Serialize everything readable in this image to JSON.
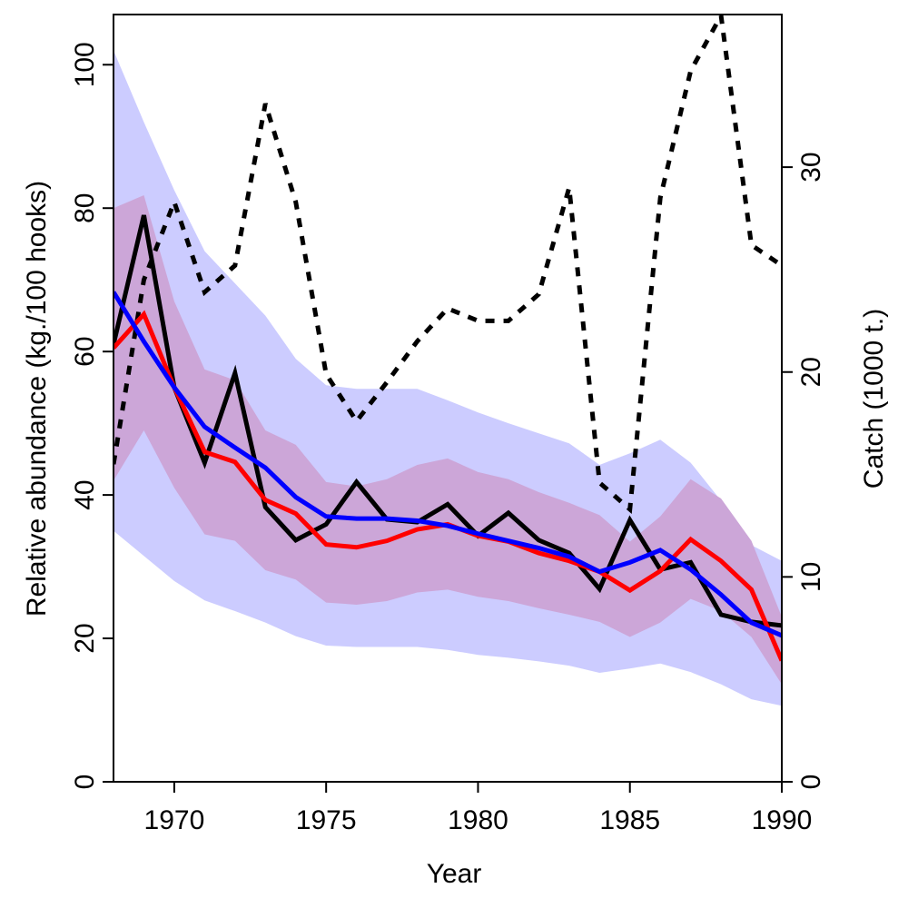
{
  "chart_data": {
    "type": "line",
    "title": "",
    "xlabel": "Year",
    "ylabel": "Relative abundance (kg./100 hooks)",
    "y2label": "Catch (1000 t.)",
    "xlim": [
      1968,
      1990
    ],
    "ylim": [
      0,
      107
    ],
    "y2lim": [
      0,
      37.45
    ],
    "xticks": [
      "1970",
      "1975",
      "1980",
      "1985",
      "1990"
    ],
    "yticks": [
      "0",
      "20",
      "40",
      "60",
      "80",
      "100"
    ],
    "y2ticks": [
      "0",
      "10",
      "20",
      "30"
    ],
    "grid": false,
    "legend": "none",
    "colors": {
      "outer_band": "#ccccff",
      "inner_band": "#cca6d8",
      "observed": "#000000",
      "fit_red": "#ff0000",
      "fit_blue": "#0000ff",
      "catch": "#000000"
    },
    "x": [
      1968,
      1969,
      1970,
      1971,
      1972,
      1973,
      1974,
      1975,
      1976,
      1977,
      1978,
      1979,
      1980,
      1981,
      1982,
      1983,
      1984,
      1985,
      1986,
      1987,
      1988,
      1989,
      1990
    ],
    "bands": [
      {
        "lower": [
          35,
          31.5,
          28,
          25.3,
          23.8,
          22.2,
          20.3,
          19,
          18.8,
          18.8,
          18.8,
          18.4,
          17.7,
          17.3,
          16.8,
          16.2,
          15.2,
          15.8,
          16.5,
          15.3,
          13.6,
          11.5,
          10.6
        ],
        "upper": [
          102,
          92,
          82.5,
          74,
          69.5,
          65,
          59,
          55.3,
          54.8,
          54.8,
          54.8,
          53.2,
          51.5,
          50,
          48.6,
          47.2,
          44.2,
          45.8,
          47.7,
          44.5,
          39.2,
          33,
          30.8
        ]
      },
      {
        "lower": [
          42,
          49,
          41,
          34.5,
          33.6,
          29.5,
          28.2,
          25,
          24.7,
          25.2,
          26.4,
          26.8,
          25.8,
          25.2,
          24.2,
          23.3,
          22.3,
          20.2,
          22.2,
          25.5,
          23.8,
          20.2,
          13.6
        ],
        "upper": [
          80,
          81.8,
          67,
          57.5,
          56,
          49,
          47,
          41.8,
          41.2,
          42.2,
          44.2,
          45.1,
          43.2,
          42.2,
          40.4,
          38.9,
          37.2,
          33.5,
          37,
          42.2,
          39.5,
          33.6,
          23
        ]
      }
    ],
    "series": [
      {
        "values": [
          61,
          79,
          55,
          44.5,
          57,
          38.3,
          33.7,
          35.9,
          41.8,
          36.6,
          36.2,
          38.7,
          34.3,
          37.5,
          33.7,
          31.9,
          26.9,
          36.5,
          29.6,
          30.6,
          23.3,
          22.3,
          21.8
        ]
      },
      {
        "values": [
          60.5,
          65.2,
          55,
          46,
          44.6,
          39.3,
          37.4,
          33.1,
          32.7,
          33.6,
          35.2,
          35.9,
          34.3,
          33.5,
          31.9,
          30.8,
          29.3,
          26.7,
          29.4,
          33.8,
          30.8,
          26.8,
          16.9
        ]
      },
      {
        "values": [
          68.3,
          61.4,
          55,
          49.5,
          46.6,
          43.8,
          39.7,
          37,
          36.7,
          36.7,
          36.4,
          35.7,
          34.6,
          33.6,
          32.6,
          31.4,
          29.3,
          30.6,
          32.3,
          29.6,
          26.1,
          22.2,
          20.4
        ]
      },
      {
        "axis": "right",
        "dashed": true,
        "values": [
          15.5,
          24.5,
          28.3,
          23.9,
          25.2,
          33.1,
          28.3,
          19.9,
          17.6,
          19.5,
          21.5,
          23.1,
          22.5,
          22.5,
          23.8,
          29,
          14.6,
          13.3,
          28.5,
          34.7,
          37.4,
          26.2,
          25.2
        ]
      }
    ]
  }
}
